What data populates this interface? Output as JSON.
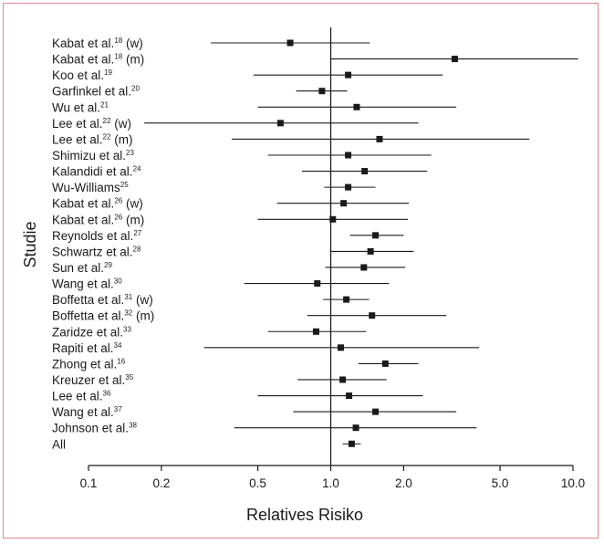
{
  "chart_data": {
    "type": "forest",
    "xlabel": "Relatives Risiko",
    "ylabel": "Studie",
    "x_scale": "log",
    "xlim": [
      0.1,
      10.0
    ],
    "xticks": [
      0.1,
      0.2,
      0.5,
      1.0,
      2.0,
      5.0,
      10.0
    ],
    "xtick_labels": [
      "0.1",
      "0.2",
      "0.5",
      "1.0",
      "2.0",
      "5.0",
      "10.0"
    ],
    "reference_line": 1.0,
    "studies": [
      {
        "name": "Kabat et al.",
        "ref": "18",
        "suffix": " (w)",
        "rr": 0.68,
        "lo": 0.32,
        "hi": 1.45
      },
      {
        "name": "Kabat et al.",
        "ref": "18",
        "suffix": " (m)",
        "rr": 3.25,
        "lo": 1.0,
        "hi": 10.5
      },
      {
        "name": "Koo et al.",
        "ref": "19",
        "suffix": "",
        "rr": 1.18,
        "lo": 0.48,
        "hi": 2.9
      },
      {
        "name": "Garfinkel et al.",
        "ref": "20",
        "suffix": "",
        "rr": 0.92,
        "lo": 0.72,
        "hi": 1.17
      },
      {
        "name": "Wu et al.",
        "ref": "21",
        "suffix": "",
        "rr": 1.28,
        "lo": 0.5,
        "hi": 3.3
      },
      {
        "name": "Lee et al.",
        "ref": "22",
        "suffix": " (w)",
        "rr": 0.62,
        "lo": 0.17,
        "hi": 2.3
      },
      {
        "name": "Lee et al.",
        "ref": "22",
        "suffix": " (m)",
        "rr": 1.59,
        "lo": 0.39,
        "hi": 6.6
      },
      {
        "name": "Shimizu et al.",
        "ref": "23",
        "suffix": "",
        "rr": 1.18,
        "lo": 0.55,
        "hi": 2.6
      },
      {
        "name": "Kalandidi et al.",
        "ref": "24",
        "suffix": "",
        "rr": 1.38,
        "lo": 0.76,
        "hi": 2.5
      },
      {
        "name": "Wu-Williams",
        "ref": "25",
        "suffix": "",
        "rr": 1.18,
        "lo": 0.94,
        "hi": 1.53
      },
      {
        "name": "Kabat et al.",
        "ref": "26",
        "suffix": " (w)",
        "rr": 1.13,
        "lo": 0.6,
        "hi": 2.1
      },
      {
        "name": "Kabat et al.",
        "ref": "26",
        "suffix": " (m)",
        "rr": 1.02,
        "lo": 0.5,
        "hi": 2.08
      },
      {
        "name": "Reynolds et al.",
        "ref": "27",
        "suffix": "",
        "rr": 1.53,
        "lo": 1.2,
        "hi": 2.0
      },
      {
        "name": "Schwartz et al.",
        "ref": "28",
        "suffix": "",
        "rr": 1.46,
        "lo": 1.0,
        "hi": 2.2
      },
      {
        "name": "Sun et al.",
        "ref": "29",
        "suffix": "",
        "rr": 1.37,
        "lo": 0.95,
        "hi": 2.03
      },
      {
        "name": "Wang et al.",
        "ref": "30",
        "suffix": "",
        "rr": 0.88,
        "lo": 0.44,
        "hi": 1.74
      },
      {
        "name": "Boffetta et al.",
        "ref": "31",
        "suffix": " (w)",
        "rr": 1.16,
        "lo": 0.93,
        "hi": 1.44
      },
      {
        "name": "Boffetta et al.",
        "ref": "32",
        "suffix": " (m)",
        "rr": 1.48,
        "lo": 0.8,
        "hi": 3.0
      },
      {
        "name": "Zaridze et al.",
        "ref": "33",
        "suffix": "",
        "rr": 0.87,
        "lo": 0.55,
        "hi": 1.4
      },
      {
        "name": "Rapiti et al.",
        "ref": "34",
        "suffix": "",
        "rr": 1.1,
        "lo": 0.3,
        "hi": 4.1
      },
      {
        "name": "Zhong et al.",
        "ref": "16",
        "suffix": "",
        "rr": 1.68,
        "lo": 1.3,
        "hi": 2.3
      },
      {
        "name": "Kreuzer et al.",
        "ref": "35",
        "suffix": "",
        "rr": 1.12,
        "lo": 0.73,
        "hi": 1.7
      },
      {
        "name": "Lee et al.",
        "ref": "36",
        "suffix": "",
        "rr": 1.19,
        "lo": 0.5,
        "hi": 2.4
      },
      {
        "name": "Wang et al.",
        "ref": "37",
        "suffix": "",
        "rr": 1.53,
        "lo": 0.7,
        "hi": 3.3
      },
      {
        "name": "Johnson et al.",
        "ref": "38",
        "suffix": "",
        "rr": 1.27,
        "lo": 0.4,
        "hi": 4.0
      },
      {
        "name": "All",
        "ref": "",
        "suffix": "",
        "rr": 1.22,
        "lo": 1.12,
        "hi": 1.33
      }
    ],
    "colors": {
      "frame": "#e3878d",
      "ink": "#1a1a1a"
    }
  }
}
